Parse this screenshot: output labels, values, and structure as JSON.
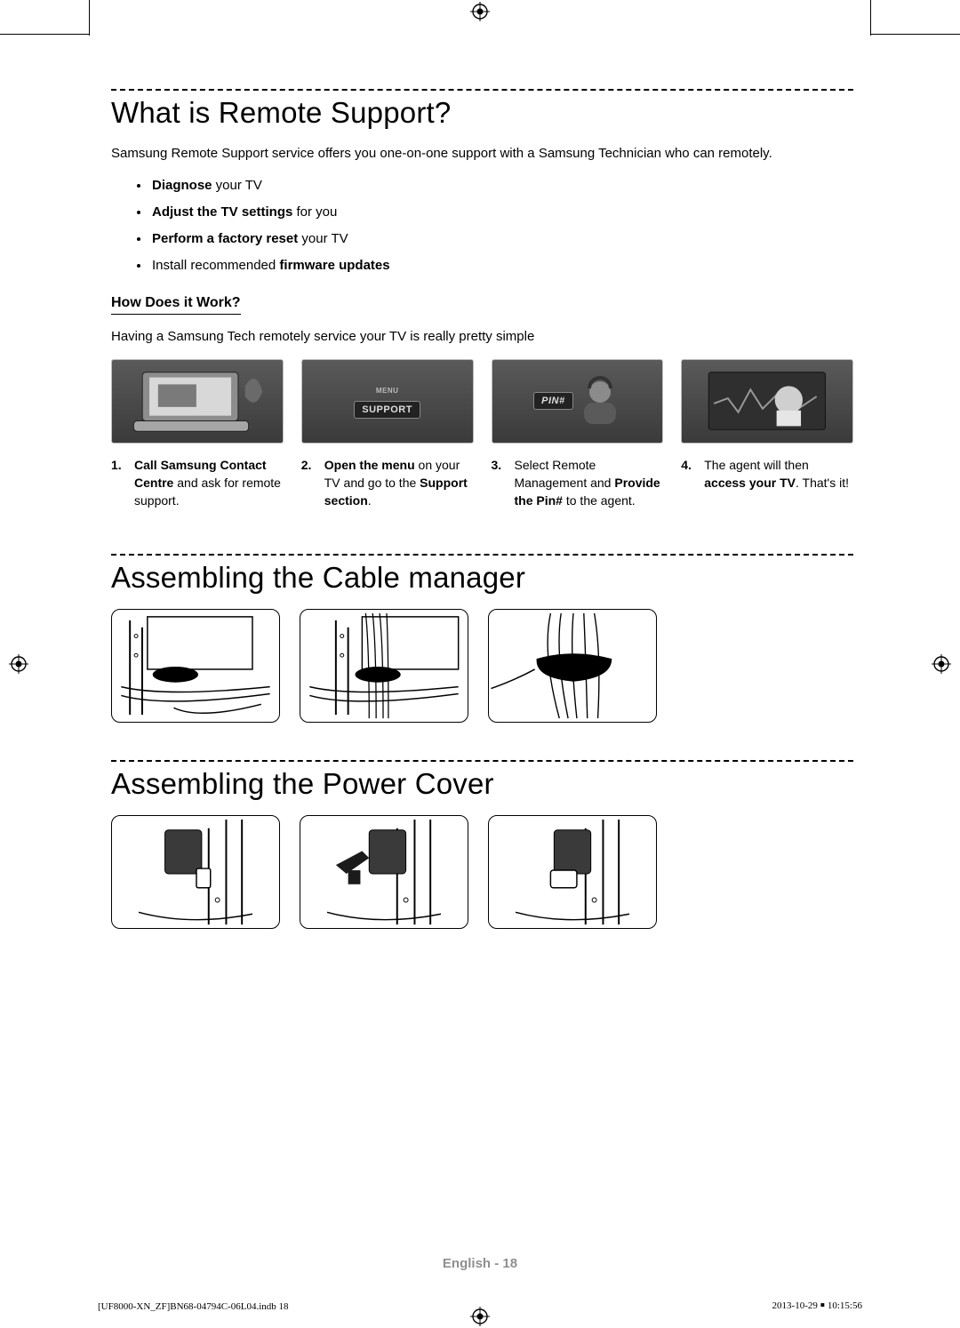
{
  "section1": {
    "title": "What is Remote Support?",
    "intro": "Samsung Remote Support service offers you one-on-one support with a Samsung Technician who can remotely.",
    "bullets": [
      {
        "bold": "Diagnose",
        "rest": " your TV"
      },
      {
        "bold": "Adjust the TV settings",
        "rest": " for you"
      },
      {
        "bold": "Perform a factory reset",
        "rest": " your TV"
      },
      {
        "prefix": "Install recommended ",
        "bold": "firmware updates",
        "rest": ""
      }
    ],
    "sub_heading": "How Does it Work?",
    "sub_text": "Having a Samsung Tech remotely service your TV is really pretty simple",
    "steps": [
      {
        "num": "1.",
        "fig_label": "",
        "html": "<span class='b'>Call Samsung Contact Centre</span> and ask for remote support."
      },
      {
        "num": "2.",
        "fig_label": "SUPPORT",
        "html": "<span class='b'>Open the menu</span> on your TV and go to the <span class='b'>Support section</span>."
      },
      {
        "num": "3.",
        "fig_label": "PIN#",
        "html": "Select Remote Management and <span class='b'>Provide the Pin#</span> to the agent."
      },
      {
        "num": "4.",
        "fig_label": "",
        "html": "The agent will then <span class='b'>access your TV</span>. That's it!"
      }
    ]
  },
  "section2": {
    "title": "Assembling the Cable manager"
  },
  "section3": {
    "title": "Assembling the Power Cover"
  },
  "footer": {
    "page_label": "English - 18",
    "indb_left": "[UF8000-XN_ZF]BN68-04794C-06L04.indb   18",
    "indb_right": "2013-10-29   ￭ 10:15:56"
  },
  "colors": {
    "dash": "#000000",
    "footer_gray": "#8f8f8f",
    "fig_border": "#bdbdbd"
  }
}
